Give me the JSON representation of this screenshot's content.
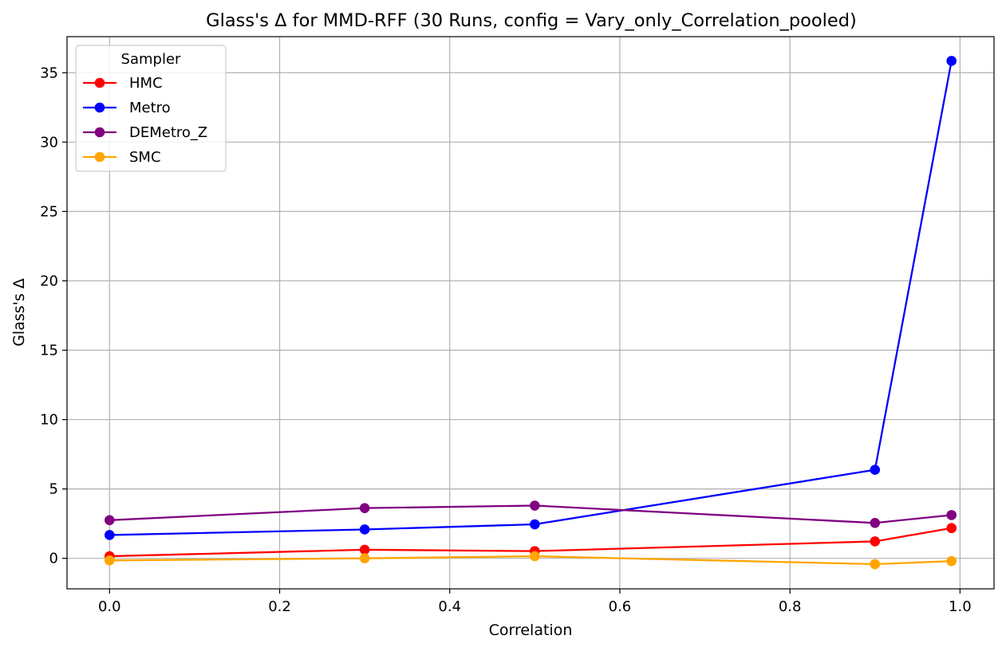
{
  "chart_data": {
    "type": "line",
    "title": "Glass's Δ for MMD-RFF (30 Runs, config = Vary_only_Correlation_pooled)",
    "xlabel": "Correlation",
    "ylabel": "Glass's Δ",
    "xlim": [
      -0.05,
      1.04
    ],
    "ylim": [
      -2.2,
      37.6
    ],
    "xticks": [
      0.0,
      0.2,
      0.4,
      0.6,
      0.8,
      1.0
    ],
    "xtick_labels": [
      "0.0",
      "0.2",
      "0.4",
      "0.6",
      "0.8",
      "1.0"
    ],
    "yticks": [
      0,
      5,
      10,
      15,
      20,
      25,
      30,
      35
    ],
    "ytick_labels": [
      "0",
      "5",
      "10",
      "15",
      "20",
      "25",
      "30",
      "35"
    ],
    "grid": true,
    "legend": {
      "title": "Sampler",
      "placement": "upper-left"
    },
    "x": [
      0.0,
      0.3,
      0.5,
      0.9,
      0.99
    ],
    "series": [
      {
        "name": "HMC",
        "color": "#ff0000",
        "values": [
          0.15,
          0.62,
          0.52,
          1.22,
          2.18
        ]
      },
      {
        "name": "Metro",
        "color": "#0000ff",
        "values": [
          1.68,
          2.08,
          2.45,
          6.38,
          35.85
        ]
      },
      {
        "name": "DEMetro_Z",
        "color": "#800080",
        "values": [
          2.75,
          3.62,
          3.8,
          2.55,
          3.12
        ]
      },
      {
        "name": "SMC",
        "color": "#ffa500",
        "values": [
          -0.15,
          0.0,
          0.15,
          -0.42,
          -0.2
        ]
      }
    ]
  }
}
